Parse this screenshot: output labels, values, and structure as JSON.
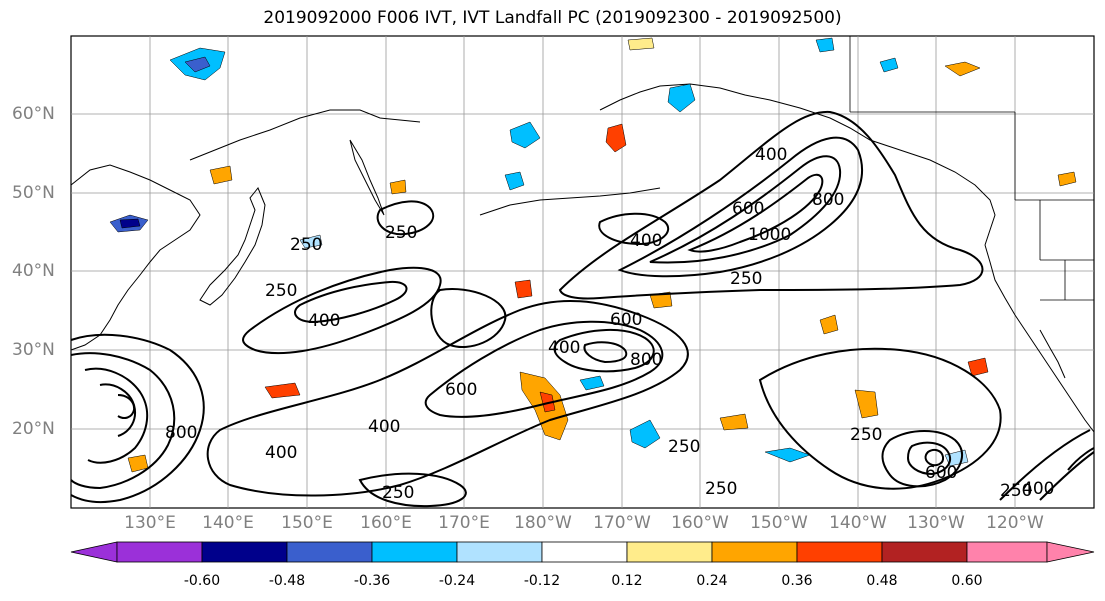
{
  "title": "2019092000 F006 IVT, IVT Landfall PC (2019092300 - 2019092500)",
  "lat_labels": [
    "60°N",
    "50°N",
    "40°N",
    "30°N",
    "20°N"
  ],
  "lon_labels": [
    "130°E",
    "140°E",
    "150°E",
    "160°E",
    "170°E",
    "180°W",
    "170°W",
    "160°W",
    "150°W",
    "140°W",
    "130°W",
    "120°W"
  ],
  "contour_labels": [
    "250",
    "250",
    "250",
    "250",
    "400",
    "400",
    "400",
    "400",
    "400",
    "400",
    "600",
    "600",
    "600",
    "800",
    "800",
    "1000",
    "250",
    "250",
    "250",
    "250",
    "250",
    "400",
    "600",
    "800"
  ],
  "colorbar": {
    "ticks": [
      "-0.60",
      "-0.48",
      "-0.36",
      "-0.24",
      "-0.12",
      "0.12",
      "0.24",
      "0.36",
      "0.48",
      "0.60"
    ],
    "colors": [
      "#9b30d9",
      "#00008b",
      "#3a5fcd",
      "#00bfff",
      "#b0e2ff",
      "#ffffff",
      "#ffec8b",
      "#ffa500",
      "#ff4000",
      "#b22222",
      "#ff82ab"
    ]
  }
}
